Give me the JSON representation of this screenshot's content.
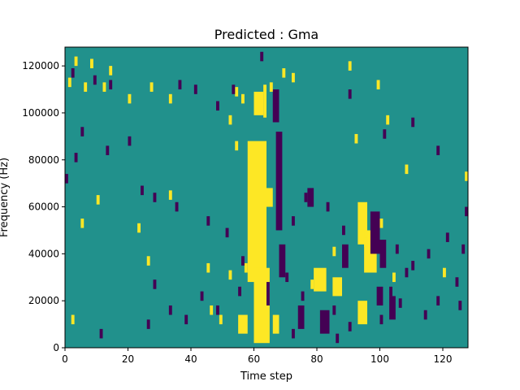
{
  "chart_data": {
    "type": "heatmap",
    "title": "Predicted : Gma",
    "xlabel": "Time step",
    "ylabel": "Frequency (Hz)",
    "xlim": [
      0,
      128
    ],
    "ylim": [
      0,
      128000
    ],
    "x_ticks": [
      0,
      20,
      40,
      60,
      80,
      100,
      120
    ],
    "y_ticks": [
      0,
      20000,
      40000,
      60000,
      80000,
      100000,
      120000
    ],
    "x_tick_labels": [
      "0",
      "20",
      "40",
      "60",
      "80",
      "100",
      "120"
    ],
    "y_tick_labels": [
      "0",
      "20000",
      "40000",
      "60000",
      "80000",
      "100000",
      "120000"
    ],
    "n_time_steps": 128,
    "n_freq_bins": 64,
    "freq_bin_width_hz": 2000,
    "colormap": "viridis",
    "levels": [
      {
        "value": 0.0,
        "color": "#440154"
      },
      {
        "value": 0.5,
        "color": "#21918c"
      },
      {
        "value": 1.0,
        "color": "#fde725"
      }
    ],
    "background_value": 0.5,
    "high_cells": [
      [
        3,
        120000
      ],
      [
        8,
        119000
      ],
      [
        14,
        116000
      ],
      [
        1,
        111000
      ],
      [
        6,
        109000
      ],
      [
        12,
        109000
      ],
      [
        20,
        104000
      ],
      [
        27,
        109000
      ],
      [
        33,
        104000
      ],
      [
        54,
        107000
      ],
      [
        56,
        104000
      ],
      [
        65,
        109000
      ],
      [
        72,
        113000
      ],
      [
        99,
        110000
      ],
      [
        57,
        32000
      ],
      [
        78,
        25000
      ],
      [
        85,
        39000
      ],
      [
        95,
        43000
      ],
      [
        100,
        51000
      ],
      [
        104,
        28000
      ],
      [
        120,
        30000
      ],
      [
        45,
        32000
      ],
      [
        33,
        63000
      ],
      [
        5,
        51000
      ],
      [
        10,
        61000
      ],
      [
        23,
        49000
      ],
      [
        26,
        35000
      ],
      [
        2,
        10000
      ],
      [
        46,
        14000
      ],
      [
        49,
        10000
      ],
      [
        52,
        29000
      ],
      [
        54,
        84000
      ],
      [
        52,
        95000
      ],
      [
        60,
        103000
      ],
      [
        69,
        115000
      ],
      [
        90,
        118000
      ],
      [
        92,
        87000
      ],
      [
        102,
        95000
      ],
      [
        108,
        74000
      ],
      [
        127,
        71000
      ]
    ],
    "high_blocks": [
      {
        "t": [
          58,
          64
        ],
        "f": [
          28000,
          88000
        ]
      },
      {
        "t": [
          60,
          65
        ],
        "f": [
          2000,
          34000
        ]
      },
      {
        "t": [
          55,
          58
        ],
        "f": [
          6000,
          14000
        ]
      },
      {
        "t": [
          66,
          68
        ],
        "f": [
          6000,
          14000
        ]
      },
      {
        "t": [
          93,
          96
        ],
        "f": [
          44000,
          62000
        ]
      },
      {
        "t": [
          95,
          99
        ],
        "f": [
          32000,
          50000
        ]
      },
      {
        "t": [
          93,
          96
        ],
        "f": [
          10000,
          20000
        ]
      },
      {
        "t": [
          79,
          83
        ],
        "f": [
          24000,
          34000
        ]
      },
      {
        "t": [
          85,
          88
        ],
        "f": [
          22000,
          30000
        ]
      },
      {
        "t": [
          60,
          63
        ],
        "f": [
          99000,
          109000
        ]
      },
      {
        "t": [
          63,
          64
        ],
        "f": [
          98000,
          112000
        ]
      },
      {
        "t": [
          64,
          66
        ],
        "f": [
          60000,
          68000
        ]
      }
    ],
    "low_cells": [
      [
        2,
        115000
      ],
      [
        5,
        90000
      ],
      [
        9,
        112000
      ],
      [
        14,
        110000
      ],
      [
        36,
        110000
      ],
      [
        41,
        108000
      ],
      [
        48,
        101000
      ],
      [
        53,
        108000
      ],
      [
        62,
        122000
      ],
      [
        67,
        100000
      ],
      [
        90,
        106000
      ],
      [
        101,
        89000
      ],
      [
        110,
        94000
      ],
      [
        118,
        82000
      ],
      [
        24,
        65000
      ],
      [
        28,
        62000
      ],
      [
        35,
        58000
      ],
      [
        45,
        52000
      ],
      [
        51,
        47000
      ],
      [
        56,
        35000
      ],
      [
        72,
        52000
      ],
      [
        76,
        62000
      ],
      [
        83,
        58000
      ],
      [
        88,
        48000
      ],
      [
        105,
        40000
      ],
      [
        110,
        33000
      ],
      [
        115,
        38000
      ],
      [
        121,
        45000
      ],
      [
        28,
        25000
      ],
      [
        33,
        14000
      ],
      [
        38,
        10000
      ],
      [
        43,
        20000
      ],
      [
        48,
        14000
      ],
      [
        55,
        22000
      ],
      [
        70,
        28000
      ],
      [
        75,
        20000
      ],
      [
        85,
        14000
      ],
      [
        90,
        7000
      ],
      [
        103,
        22000
      ],
      [
        108,
        30000
      ],
      [
        114,
        12000
      ],
      [
        118,
        18000
      ],
      [
        11,
        4000
      ],
      [
        26,
        8000
      ],
      [
        72,
        4000
      ],
      [
        86,
        2000
      ],
      [
        100,
        10000
      ],
      [
        125,
        16000
      ],
      [
        126,
        40000
      ],
      [
        127,
        56000
      ],
      [
        0,
        70000
      ],
      [
        3,
        79000
      ],
      [
        13,
        82000
      ],
      [
        20,
        86000
      ],
      [
        124,
        26000
      ],
      [
        106,
        17000
      ]
    ],
    "low_blocks": [
      {
        "t": [
          67,
          69
        ],
        "f": [
          50000,
          92000
        ]
      },
      {
        "t": [
          68,
          70
        ],
        "f": [
          30000,
          44000
        ]
      },
      {
        "t": [
          74,
          76
        ],
        "f": [
          8000,
          18000
        ]
      },
      {
        "t": [
          81,
          84
        ],
        "f": [
          6000,
          16000
        ]
      },
      {
        "t": [
          97,
          100
        ],
        "f": [
          40000,
          58000
        ]
      },
      {
        "t": [
          100,
          102
        ],
        "f": [
          34000,
          46000
        ]
      },
      {
        "t": [
          99,
          101
        ],
        "f": [
          18000,
          26000
        ]
      },
      {
        "t": [
          103,
          105
        ],
        "f": [
          12000,
          22000
        ]
      },
      {
        "t": [
          88,
          90
        ],
        "f": [
          34000,
          44000
        ]
      },
      {
        "t": [
          66,
          68
        ],
        "f": [
          96000,
          110000
        ]
      },
      {
        "t": [
          64,
          65
        ],
        "f": [
          18000,
          28000
        ]
      },
      {
        "t": [
          77,
          79
        ],
        "f": [
          60000,
          68000
        ]
      }
    ]
  }
}
